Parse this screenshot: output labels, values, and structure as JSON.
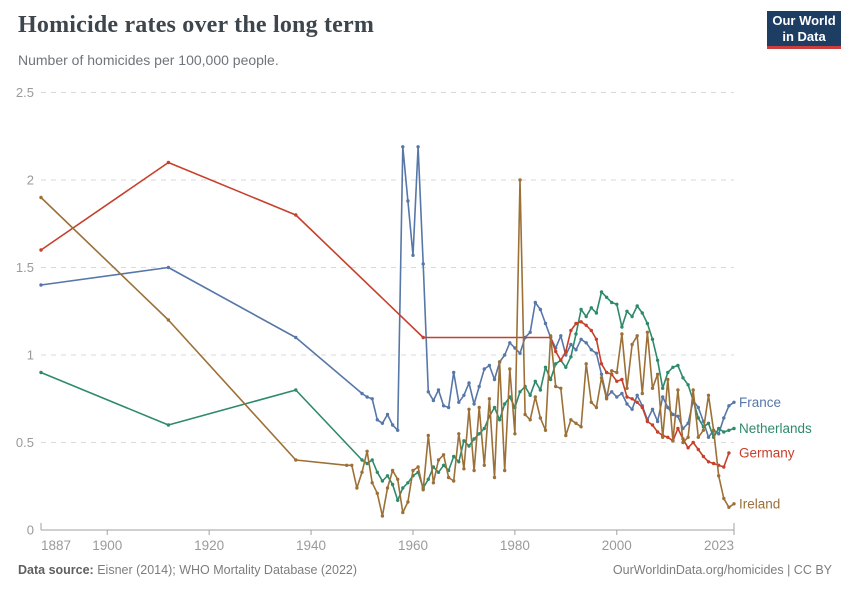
{
  "logo": {
    "line1": "Our World",
    "line2": "in Data",
    "bg_color": "#1d3d63",
    "bar_color": "#cc3e3e"
  },
  "footer": {
    "source_label": "Data source:",
    "source_text": " Eisner (2014); WHO Mortality Database (2022)",
    "credit": "OurWorldinData.org/homicides | CC BY"
  },
  "chart_data": {
    "type": "line",
    "title": "Homicide rates over the long term",
    "subtitle": "Number of homicides per 100,000 people.",
    "xlabel": "",
    "ylabel": "",
    "xlim": [
      1887,
      2023
    ],
    "ylim": [
      0,
      2.5
    ],
    "xticks": [
      1887,
      1900,
      1920,
      1940,
      1960,
      1980,
      2000,
      2023
    ],
    "yticks": [
      0,
      0.5,
      1,
      1.5,
      2,
      2.5
    ],
    "grid": true,
    "grid_color": "#dadada",
    "axis_color": "#a2a2a2",
    "tick_label_color": "#9a9a9a",
    "legend_position": "end-of-line labels, right side",
    "series": [
      {
        "name": "France",
        "color": "#5677a8",
        "points": [
          [
            1887,
            1.4
          ],
          [
            1912,
            1.5
          ],
          [
            1937,
            1.1
          ],
          [
            1950,
            0.78
          ],
          [
            1951,
            0.76
          ],
          [
            1952,
            0.75
          ],
          [
            1953,
            0.63
          ],
          [
            1954,
            0.61
          ],
          [
            1955,
            0.66
          ],
          [
            1956,
            0.6
          ],
          [
            1957,
            0.57
          ],
          [
            1958,
            2.19
          ],
          [
            1959,
            1.88
          ],
          [
            1960,
            1.57
          ],
          [
            1961,
            2.19
          ],
          [
            1962,
            1.52
          ],
          [
            1963,
            0.79
          ],
          [
            1964,
            0.74
          ],
          [
            1965,
            0.8
          ],
          [
            1966,
            0.71
          ],
          [
            1967,
            0.7
          ],
          [
            1968,
            0.9
          ],
          [
            1969,
            0.73
          ],
          [
            1970,
            0.77
          ],
          [
            1971,
            0.84
          ],
          [
            1972,
            0.72
          ],
          [
            1973,
            0.82
          ],
          [
            1974,
            0.92
          ],
          [
            1975,
            0.94
          ],
          [
            1976,
            0.86
          ],
          [
            1977,
            0.96
          ],
          [
            1978,
            1.0
          ],
          [
            1979,
            1.07
          ],
          [
            1980,
            1.04
          ],
          [
            1981,
            1.01
          ],
          [
            1982,
            1.1
          ],
          [
            1983,
            1.13
          ],
          [
            1984,
            1.3
          ],
          [
            1985,
            1.26
          ],
          [
            1986,
            1.18
          ],
          [
            1987,
            1.1
          ],
          [
            1988,
            1.04
          ],
          [
            1989,
            1.11
          ],
          [
            1990,
            1.0
          ],
          [
            1991,
            1.06
          ],
          [
            1992,
            1.03
          ],
          [
            1993,
            1.09
          ],
          [
            1994,
            1.07
          ],
          [
            1995,
            1.03
          ],
          [
            1996,
            1.01
          ],
          [
            1997,
            0.89
          ],
          [
            1998,
            0.76
          ],
          [
            1999,
            0.79
          ],
          [
            2000,
            0.76
          ],
          [
            2001,
            0.78
          ],
          [
            2002,
            0.72
          ],
          [
            2003,
            0.69
          ],
          [
            2004,
            0.77
          ],
          [
            2005,
            0.71
          ],
          [
            2006,
            0.63
          ],
          [
            2007,
            0.69
          ],
          [
            2008,
            0.62
          ],
          [
            2009,
            0.76
          ],
          [
            2010,
            0.7
          ],
          [
            2011,
            0.66
          ],
          [
            2012,
            0.65
          ],
          [
            2013,
            0.58
          ],
          [
            2014,
            0.61
          ],
          [
            2015,
            0.74
          ],
          [
            2016,
            0.7
          ],
          [
            2017,
            0.62
          ],
          [
            2018,
            0.53
          ],
          [
            2019,
            0.57
          ],
          [
            2020,
            0.55
          ],
          [
            2021,
            0.64
          ],
          [
            2022,
            0.71
          ],
          [
            2023,
            0.73
          ]
        ]
      },
      {
        "name": "Netherlands",
        "color": "#2e8a6b",
        "points": [
          [
            1887,
            0.9
          ],
          [
            1912,
            0.6
          ],
          [
            1937,
            0.8
          ],
          [
            1950,
            0.4
          ],
          [
            1951,
            0.38
          ],
          [
            1952,
            0.4
          ],
          [
            1953,
            0.33
          ],
          [
            1954,
            0.28
          ],
          [
            1955,
            0.31
          ],
          [
            1956,
            0.26
          ],
          [
            1957,
            0.17
          ],
          [
            1958,
            0.24
          ],
          [
            1959,
            0.27
          ],
          [
            1960,
            0.31
          ],
          [
            1961,
            0.33
          ],
          [
            1962,
            0.24
          ],
          [
            1963,
            0.29
          ],
          [
            1964,
            0.36
          ],
          [
            1965,
            0.33
          ],
          [
            1966,
            0.37
          ],
          [
            1967,
            0.34
          ],
          [
            1968,
            0.42
          ],
          [
            1969,
            0.39
          ],
          [
            1970,
            0.51
          ],
          [
            1971,
            0.48
          ],
          [
            1972,
            0.52
          ],
          [
            1973,
            0.55
          ],
          [
            1974,
            0.58
          ],
          [
            1975,
            0.65
          ],
          [
            1976,
            0.7
          ],
          [
            1977,
            0.63
          ],
          [
            1978,
            0.72
          ],
          [
            1979,
            0.76
          ],
          [
            1980,
            0.7
          ],
          [
            1981,
            0.79
          ],
          [
            1982,
            0.82
          ],
          [
            1983,
            0.77
          ],
          [
            1984,
            0.85
          ],
          [
            1985,
            0.8
          ],
          [
            1986,
            0.93
          ],
          [
            1987,
            0.86
          ],
          [
            1988,
            0.95
          ],
          [
            1989,
            0.97
          ],
          [
            1990,
            0.93
          ],
          [
            1991,
            0.99
          ],
          [
            1992,
            1.12
          ],
          [
            1993,
            1.26
          ],
          [
            1994,
            1.22
          ],
          [
            1995,
            1.27
          ],
          [
            1996,
            1.24
          ],
          [
            1997,
            1.36
          ],
          [
            1998,
            1.33
          ],
          [
            1999,
            1.3
          ],
          [
            2000,
            1.29
          ],
          [
            2001,
            1.16
          ],
          [
            2002,
            1.25
          ],
          [
            2003,
            1.22
          ],
          [
            2004,
            1.28
          ],
          [
            2005,
            1.24
          ],
          [
            2006,
            1.18
          ],
          [
            2007,
            1.09
          ],
          [
            2008,
            0.97
          ],
          [
            2009,
            0.81
          ],
          [
            2010,
            0.9
          ],
          [
            2011,
            0.93
          ],
          [
            2012,
            0.94
          ],
          [
            2013,
            0.87
          ],
          [
            2014,
            0.83
          ],
          [
            2015,
            0.74
          ],
          [
            2016,
            0.64
          ],
          [
            2017,
            0.59
          ],
          [
            2018,
            0.61
          ],
          [
            2019,
            0.53
          ],
          [
            2020,
            0.58
          ],
          [
            2021,
            0.56
          ],
          [
            2022,
            0.57
          ],
          [
            2023,
            0.58
          ]
        ]
      },
      {
        "name": "Germany",
        "color": "#c6402c",
        "points": [
          [
            1887,
            1.6
          ],
          [
            1912,
            2.1
          ],
          [
            1937,
            1.8
          ],
          [
            1962,
            1.1
          ],
          [
            1987,
            1.1
          ],
          [
            1988,
            1.02
          ],
          [
            1989,
            0.97
          ],
          [
            1990,
            1.02
          ],
          [
            1991,
            1.14
          ],
          [
            1992,
            1.18
          ],
          [
            1993,
            1.19
          ],
          [
            1994,
            1.17
          ],
          [
            1995,
            1.14
          ],
          [
            1996,
            1.09
          ],
          [
            1997,
            0.95
          ],
          [
            1998,
            0.9
          ],
          [
            1999,
            0.89
          ],
          [
            2000,
            0.85
          ],
          [
            2001,
            0.86
          ],
          [
            2002,
            0.76
          ],
          [
            2003,
            0.75
          ],
          [
            2004,
            0.73
          ],
          [
            2005,
            0.7
          ],
          [
            2006,
            0.62
          ],
          [
            2007,
            0.6
          ],
          [
            2008,
            0.56
          ],
          [
            2009,
            0.54
          ],
          [
            2010,
            0.53
          ],
          [
            2011,
            0.51
          ],
          [
            2012,
            0.58
          ],
          [
            2013,
            0.52
          ],
          [
            2014,
            0.47
          ],
          [
            2015,
            0.5
          ],
          [
            2016,
            0.46
          ],
          [
            2017,
            0.42
          ],
          [
            2018,
            0.39
          ],
          [
            2019,
            0.38
          ],
          [
            2020,
            0.37
          ],
          [
            2021,
            0.36
          ],
          [
            2022,
            0.44
          ]
        ]
      },
      {
        "name": "Ireland",
        "color": "#9c7037",
        "points": [
          [
            1887,
            1.9
          ],
          [
            1912,
            1.2
          ],
          [
            1937,
            0.4
          ],
          [
            1947,
            0.37
          ],
          [
            1948,
            0.37
          ],
          [
            1949,
            0.24
          ],
          [
            1950,
            0.33
          ],
          [
            1951,
            0.45
          ],
          [
            1952,
            0.27
          ],
          [
            1953,
            0.21
          ],
          [
            1954,
            0.08
          ],
          [
            1955,
            0.24
          ],
          [
            1956,
            0.34
          ],
          [
            1957,
            0.29
          ],
          [
            1958,
            0.1
          ],
          [
            1959,
            0.16
          ],
          [
            1960,
            0.34
          ],
          [
            1961,
            0.36
          ],
          [
            1962,
            0.23
          ],
          [
            1963,
            0.54
          ],
          [
            1964,
            0.27
          ],
          [
            1965,
            0.4
          ],
          [
            1966,
            0.43
          ],
          [
            1967,
            0.3
          ],
          [
            1968,
            0.28
          ],
          [
            1969,
            0.55
          ],
          [
            1970,
            0.35
          ],
          [
            1971,
            0.69
          ],
          [
            1972,
            0.34
          ],
          [
            1973,
            0.7
          ],
          [
            1974,
            0.37
          ],
          [
            1975,
            0.75
          ],
          [
            1976,
            0.3
          ],
          [
            1977,
            0.96
          ],
          [
            1978,
            0.34
          ],
          [
            1979,
            0.92
          ],
          [
            1980,
            0.55
          ],
          [
            1981,
            2.0
          ],
          [
            1982,
            0.66
          ],
          [
            1983,
            0.63
          ],
          [
            1984,
            0.76
          ],
          [
            1985,
            0.64
          ],
          [
            1986,
            0.57
          ],
          [
            1987,
            1.11
          ],
          [
            1988,
            0.82
          ],
          [
            1989,
            0.81
          ],
          [
            1990,
            0.54
          ],
          [
            1991,
            0.63
          ],
          [
            1992,
            0.61
          ],
          [
            1993,
            0.59
          ],
          [
            1994,
            0.95
          ],
          [
            1995,
            0.73
          ],
          [
            1996,
            0.7
          ],
          [
            1997,
            0.87
          ],
          [
            1998,
            0.75
          ],
          [
            1999,
            0.91
          ],
          [
            2000,
            0.9
          ],
          [
            2001,
            1.12
          ],
          [
            2002,
            0.81
          ],
          [
            2003,
            1.06
          ],
          [
            2004,
            1.11
          ],
          [
            2005,
            0.78
          ],
          [
            2006,
            1.13
          ],
          [
            2007,
            0.81
          ],
          [
            2008,
            0.89
          ],
          [
            2009,
            0.53
          ],
          [
            2010,
            0.86
          ],
          [
            2011,
            0.51
          ],
          [
            2012,
            0.8
          ],
          [
            2013,
            0.5
          ],
          [
            2014,
            0.53
          ],
          [
            2015,
            0.8
          ],
          [
            2016,
            0.53
          ],
          [
            2017,
            0.57
          ],
          [
            2018,
            0.77
          ],
          [
            2019,
            0.57
          ],
          [
            2020,
            0.31
          ],
          [
            2021,
            0.18
          ],
          [
            2022,
            0.13
          ],
          [
            2023,
            0.15
          ]
        ]
      }
    ]
  }
}
